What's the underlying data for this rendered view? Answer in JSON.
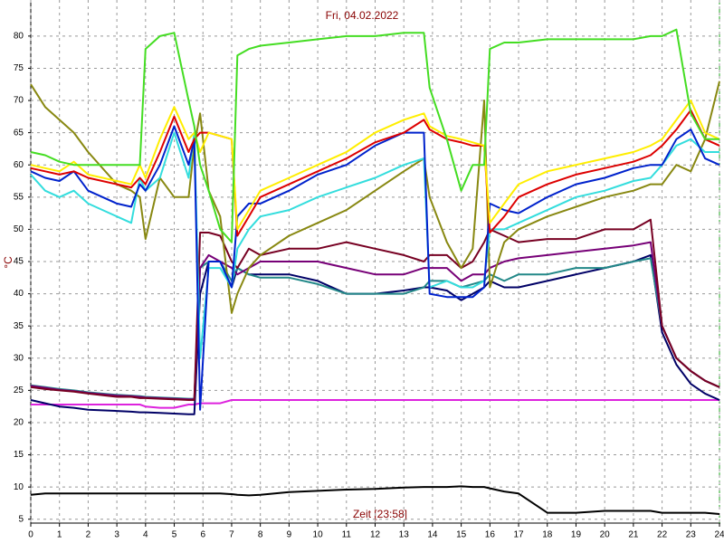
{
  "chart_data": {
    "type": "line",
    "title": "Fri, 04.02.2022",
    "x_label": "Zeit [23:58]",
    "y_label": "°C",
    "x": [
      0,
      0.5,
      1,
      1.5,
      2,
      3,
      3.5,
      3.8,
      4,
      4.5,
      5,
      5.5,
      5.7,
      5.9,
      6.2,
      6.6,
      7,
      7.2,
      7.6,
      8,
      9,
      10,
      11,
      12,
      13,
      13.7,
      13.9,
      14.5,
      15,
      15.4,
      15.8,
      16,
      16.5,
      17,
      18,
      19,
      20,
      21,
      21.6,
      22,
      22.5,
      23,
      23.5,
      24
    ],
    "xlim": [
      0,
      24
    ],
    "xticks": [
      0,
      1,
      2,
      3,
      4,
      5,
      6,
      7,
      8,
      9,
      10,
      11,
      12,
      13,
      14,
      15,
      16,
      17,
      18,
      19,
      20,
      21,
      22,
      23,
      24
    ],
    "ylim": [
      4.4,
      85.6
    ],
    "yticks": [
      5,
      10,
      15,
      20,
      25,
      30,
      35,
      40,
      45,
      50,
      55,
      60,
      65,
      70,
      75,
      80
    ],
    "grid": true,
    "series": [
      {
        "color": "#000000",
        "values": [
          8.8,
          9,
          9,
          9,
          9,
          9,
          9,
          9,
          9,
          9,
          9,
          9,
          9,
          9,
          9,
          9,
          8.9,
          8.8,
          8.7,
          8.8,
          9.2,
          9.4,
          9.6,
          9.7,
          9.9,
          10,
          10,
          10,
          10.1,
          10,
          10,
          9.8,
          9.3,
          9,
          6,
          6,
          6.3,
          6.3,
          6.3,
          6,
          6,
          6,
          6,
          5.8
        ]
      },
      {
        "color": "#dd22dd",
        "values": [
          22.8,
          22.8,
          22.8,
          22.8,
          22.8,
          22.8,
          22.8,
          22.8,
          22.5,
          22.3,
          22.3,
          22.8,
          22.8,
          23,
          23,
          23,
          23.5,
          23.5,
          23.5,
          23.5,
          23.5,
          23.5,
          23.5,
          23.5,
          23.5,
          23.5,
          23.5,
          23.5,
          23.5,
          23.5,
          23.5,
          23.5,
          23.5,
          23.5,
          23.5,
          23.5,
          23.5,
          23.5,
          23.5,
          23.5,
          23.5,
          23.5,
          23.5,
          23.5
        ]
      },
      {
        "color": "#000066",
        "values": [
          23.5,
          23,
          22.5,
          22.3,
          22,
          21.8,
          21.7,
          21.6,
          21.6,
          21.5,
          21.4,
          21.3,
          21.3,
          40,
          45,
          45,
          41,
          44,
          43,
          43,
          43,
          42,
          40,
          40,
          40.5,
          41,
          41,
          40.5,
          39,
          40,
          41,
          42,
          41,
          41,
          42,
          43,
          44,
          45,
          46,
          34,
          29,
          26,
          24.5,
          23.5
        ]
      },
      {
        "color": "#228888",
        "values": [
          25.8,
          25.5,
          25.2,
          25,
          24.7,
          24.3,
          24.2,
          24.1,
          24,
          23.9,
          23.8,
          23.7,
          23.7,
          44,
          45,
          45,
          42,
          44,
          43,
          42.5,
          42.5,
          41.5,
          40,
          40,
          40,
          41,
          42,
          42,
          41,
          41.5,
          42,
          43,
          42,
          43,
          43,
          44,
          44,
          45,
          45.5,
          35,
          30,
          28,
          26.5,
          25.5
        ]
      },
      {
        "color": "#770077",
        "values": [
          25.7,
          25.4,
          25.1,
          24.9,
          24.6,
          24.2,
          24.1,
          24,
          23.9,
          23.8,
          23.7,
          23.6,
          23.6,
          44,
          46,
          45,
          44,
          43,
          44,
          45,
          45,
          45,
          44,
          43,
          43,
          44,
          44,
          44,
          42,
          43,
          43,
          44,
          45,
          45.5,
          46,
          46.5,
          47,
          47.5,
          48,
          35,
          30,
          28,
          26.5,
          25.5
        ]
      },
      {
        "color": "#770022",
        "values": [
          25.5,
          25.2,
          25,
          24.8,
          24.5,
          24,
          24,
          23.8,
          23.8,
          23.7,
          23.6,
          23.5,
          23.5,
          49.5,
          49.5,
          49,
          45,
          44,
          47,
          46,
          47,
          47,
          48,
          47,
          46,
          45,
          46,
          46,
          44,
          45,
          48,
          50,
          49,
          48,
          48.5,
          48.5,
          50,
          50,
          51.5,
          35,
          30,
          28,
          26.5,
          25.5
        ]
      },
      {
        "color": "#888811",
        "values": [
          72.5,
          69,
          67,
          65,
          62,
          57,
          56,
          55,
          48.5,
          58,
          55,
          55,
          63,
          68,
          56,
          52,
          37,
          40,
          44,
          46,
          49,
          51,
          53,
          56,
          59,
          61,
          55,
          48,
          44,
          47,
          70,
          41,
          48,
          50,
          52,
          53.5,
          55,
          56,
          57,
          57,
          60,
          59,
          64,
          73
        ]
      },
      {
        "color": "#33dddd",
        "values": [
          58.5,
          56,
          55,
          56,
          54,
          52,
          51,
          58,
          56,
          58,
          65,
          58,
          65,
          30,
          44,
          44,
          41,
          47,
          50,
          52,
          53,
          55,
          56.5,
          58,
          60,
          61,
          41,
          42,
          41,
          41,
          42,
          50,
          50,
          51,
          53,
          55,
          56,
          57.5,
          58,
          60,
          63,
          64,
          62,
          62
        ]
      },
      {
        "color": "#0022cc",
        "values": [
          59,
          58,
          57.5,
          59,
          56,
          54,
          53.5,
          57,
          56,
          60,
          66,
          60,
          64,
          22,
          45,
          45,
          41,
          52,
          54,
          54,
          56,
          58.5,
          60,
          63,
          65,
          65,
          40,
          39.5,
          39.5,
          39.5,
          41,
          54,
          53,
          52.5,
          55,
          57,
          58,
          59.5,
          60,
          60,
          64,
          65.5,
          61,
          60
        ]
      },
      {
        "color": "#dd0000",
        "values": [
          59.5,
          59,
          58.5,
          59,
          58,
          57,
          56.5,
          58,
          57,
          62,
          67.5,
          62,
          64,
          65,
          65,
          64.5,
          64,
          49,
          52,
          55,
          57,
          59,
          61,
          63.5,
          65,
          67,
          65.5,
          64,
          63.5,
          63,
          63,
          49.5,
          52,
          55,
          57,
          58.5,
          59.5,
          60.5,
          61.5,
          63,
          65.5,
          68.5,
          64,
          63
        ]
      },
      {
        "color": "#ffee00",
        "values": [
          60,
          59.5,
          59,
          60.5,
          58.5,
          57.5,
          57,
          60,
          58,
          64,
          69,
          64,
          65,
          62,
          65,
          64.5,
          64,
          50,
          53,
          56,
          58,
          60,
          62,
          65,
          67,
          68,
          66,
          64.5,
          64,
          63.5,
          63,
          51,
          54,
          57,
          59,
          60,
          61,
          62,
          63,
          64,
          67,
          70,
          65,
          64
        ]
      },
      {
        "color": "#44dd22",
        "values": [
          62,
          61.5,
          60.5,
          60,
          60,
          60,
          60,
          60,
          78,
          80,
          80.5,
          70,
          66,
          60,
          56,
          50,
          48,
          77,
          78,
          78.5,
          79,
          79.5,
          80,
          80,
          80.5,
          80.5,
          72,
          64,
          56,
          60,
          60,
          78,
          79,
          79,
          79.5,
          79.5,
          79.5,
          79.5,
          80,
          80,
          81,
          68,
          64,
          64
        ]
      }
    ]
  }
}
